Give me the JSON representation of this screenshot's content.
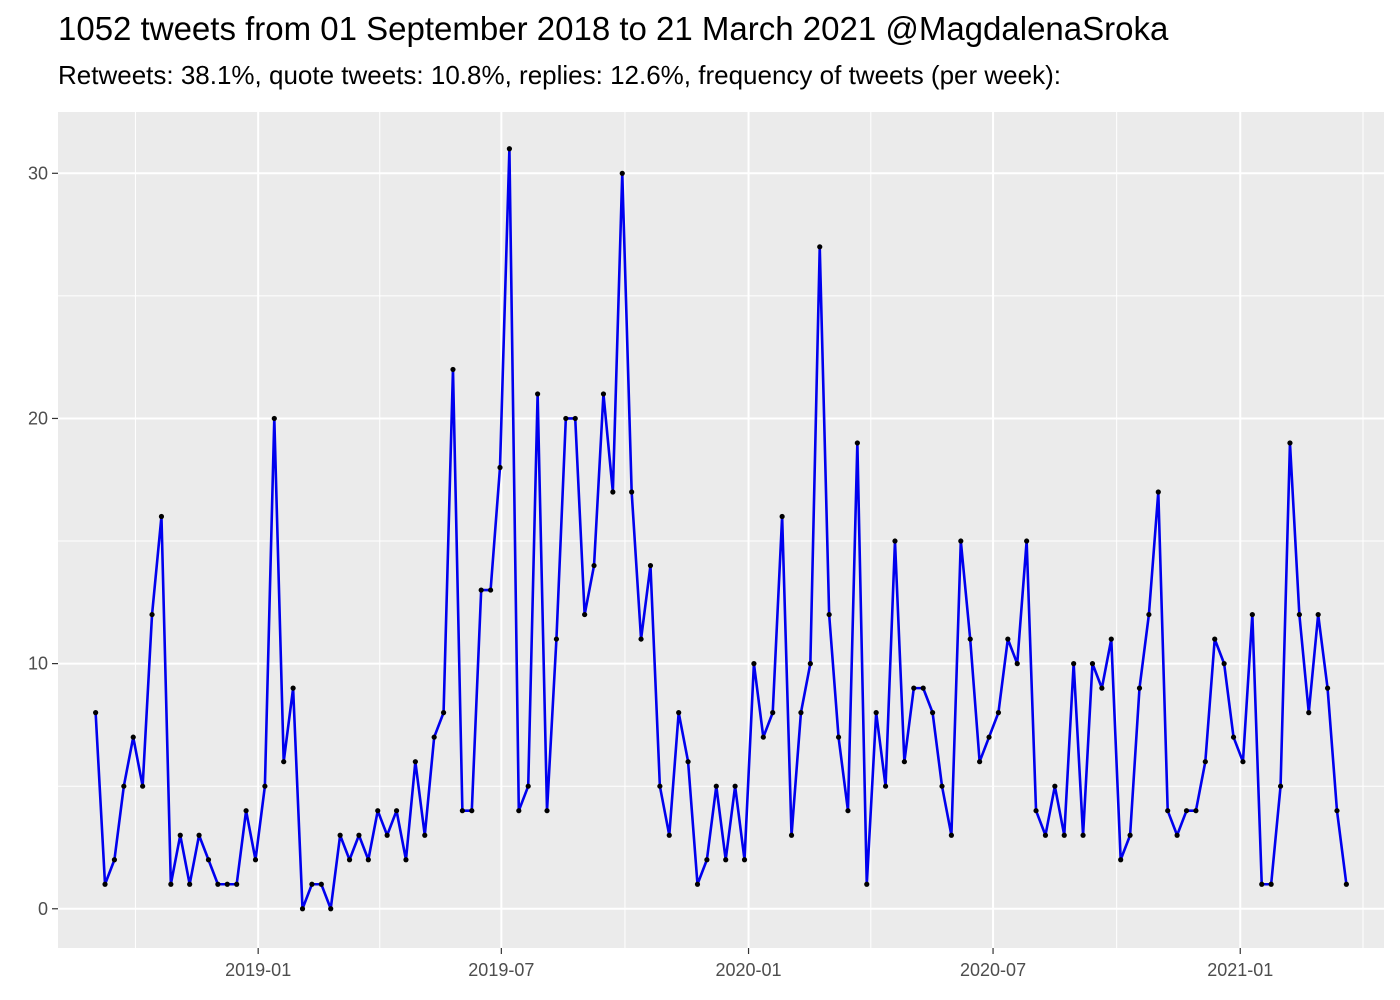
{
  "chart_data": {
    "type": "line",
    "title": "1052 tweets from 01 September 2018 to 21 March 2021 @MagdalenaSroka",
    "subtitle": "Retweets: 38.1%, quote tweets: 10.8%, replies: 12.6%, frequency of tweets (per week):",
    "xlabel": "",
    "ylabel": "",
    "x_start": "2018-09-02",
    "x_step_days": 7,
    "xlim": [
      "2018-08-05",
      "2021-04-18"
    ],
    "ylim": [
      -1.6,
      32.5
    ],
    "x_ticks": [
      {
        "date": "2019-01-01",
        "label": "2019-01"
      },
      {
        "date": "2019-07-01",
        "label": "2019-07"
      },
      {
        "date": "2020-01-01",
        "label": "2020-01"
      },
      {
        "date": "2020-07-01",
        "label": "2020-07"
      },
      {
        "date": "2021-01-01",
        "label": "2021-01"
      }
    ],
    "y_ticks": [
      0,
      10,
      20,
      30
    ],
    "grid": true,
    "line_color": "#0000ee",
    "point_color": "#000000",
    "panel_color": "#ebebeb",
    "series": [
      {
        "values": [
          8,
          1,
          2,
          5,
          7,
          5,
          12,
          16,
          1,
          3,
          1,
          3,
          2,
          1,
          1,
          1,
          4,
          2,
          5,
          20,
          6,
          9,
          0,
          1,
          1,
          0,
          3,
          2,
          3,
          2,
          4,
          3,
          4,
          2,
          6,
          3,
          7,
          8,
          22,
          4,
          4,
          13,
          13,
          18,
          31,
          4,
          5,
          21,
          4,
          11,
          20,
          20,
          12,
          14,
          21,
          17,
          30,
          17,
          11,
          14,
          5,
          3,
          8,
          6,
          1,
          2,
          5,
          2,
          5,
          2,
          10,
          7,
          8,
          16,
          3,
          8,
          10,
          27,
          12,
          7,
          4,
          19,
          1,
          8,
          5,
          15,
          6,
          9,
          9,
          8,
          5,
          3,
          15,
          11,
          6,
          7,
          8,
          11,
          10,
          15,
          4,
          3,
          5,
          3,
          10,
          3,
          10,
          9,
          11,
          2,
          3,
          9,
          12,
          17,
          4,
          3,
          4,
          4,
          6,
          11,
          10,
          7,
          6,
          12,
          1,
          1,
          5,
          19,
          12,
          8,
          12,
          9,
          4,
          1
        ]
      }
    ]
  }
}
